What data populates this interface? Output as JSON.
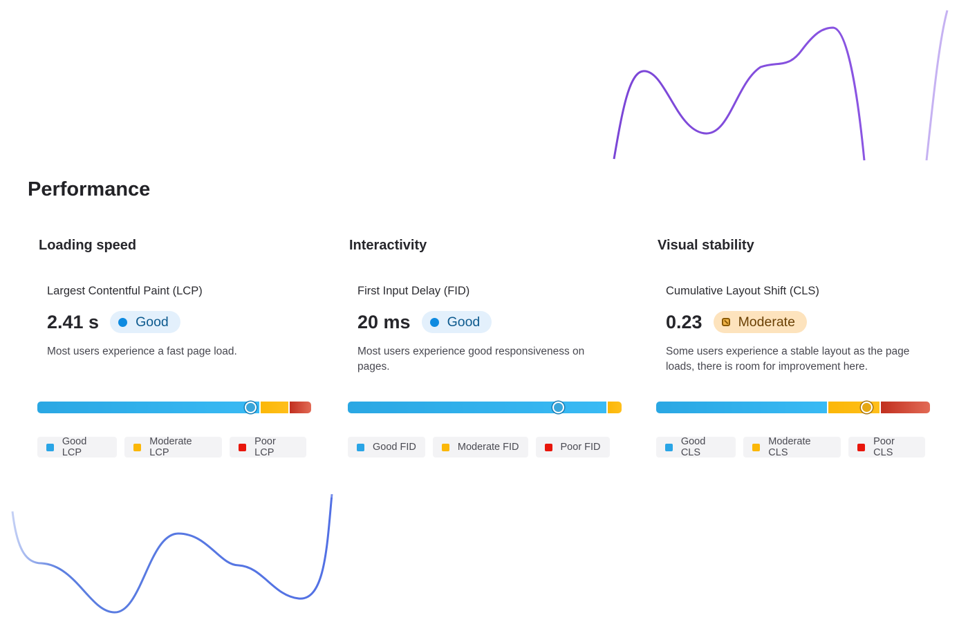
{
  "page_title": "Performance",
  "colors": {
    "good": "#2aa5e6",
    "moderate": "#fbb708",
    "poor": "#e8160c",
    "good_badge_bg": "#e3f0fc",
    "moderate_badge_bg": "#fde3bd"
  },
  "cards": [
    {
      "title": "Loading speed",
      "metric": "Largest Contentful Paint (LCP)",
      "value": "2.41 s",
      "rating": "Good",
      "rating_icon": "status-dot-icon",
      "description": "Most users experience a fast page load.",
      "distribution": {
        "good_fraction": 0.82,
        "moderate_fraction": 0.1,
        "poor_fraction": 0.08,
        "marker_fraction": 0.78
      },
      "legend": [
        "Good LCP",
        "Moderate LCP",
        "Poor LCP"
      ]
    },
    {
      "title": "Interactivity",
      "metric": "First Input Delay (FID)",
      "value": "20 ms",
      "rating": "Good",
      "rating_icon": "status-dot-icon",
      "description": "Most users experience good responsiveness on pages.",
      "distribution": {
        "good_fraction": 0.95,
        "moderate_fraction": 0.05,
        "poor_fraction": 0.0,
        "marker_fraction": 0.77
      },
      "legend": [
        "Good FID",
        "Moderate FID",
        "Poor FID"
      ]
    },
    {
      "title": "Visual stability",
      "metric": "Cumulative Layout Shift (CLS)",
      "value": "0.23",
      "rating": "Moderate",
      "rating_icon": "moderate-pattern-icon",
      "description": "Some users experience a stable layout as the page loads, there is room for improvement here.",
      "distribution": {
        "good_fraction": 0.63,
        "moderate_fraction": 0.19,
        "poor_fraction": 0.18,
        "marker_fraction": 0.77
      },
      "legend": [
        "Good CLS",
        "Moderate CLS",
        "Poor CLS"
      ]
    }
  ]
}
